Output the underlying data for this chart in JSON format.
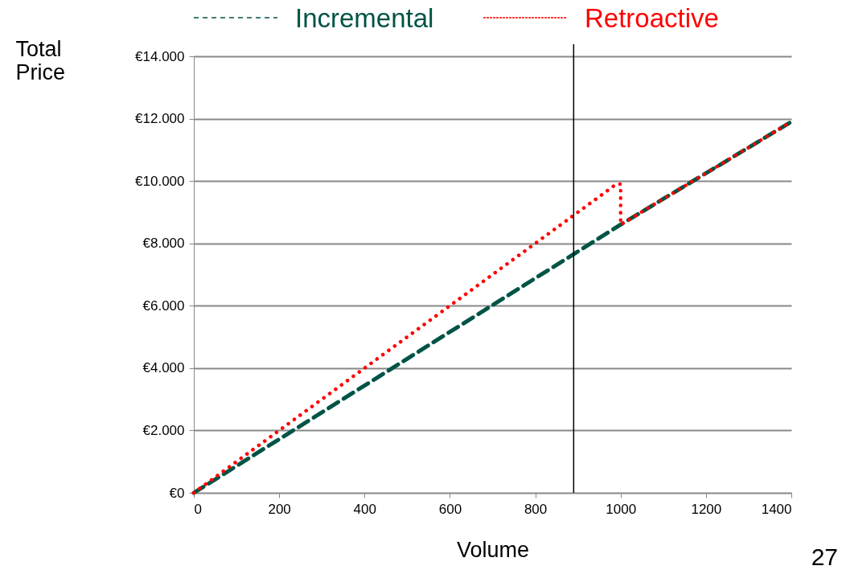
{
  "chart_data": {
    "type": "line",
    "xlabel": "Volume",
    "ylabel": "Total Price",
    "x": [
      0,
      1000,
      1400
    ],
    "series": [
      {
        "name": "Incremental",
        "color": "#005446",
        "line_style": "dashed",
        "values": [
          0,
          8600,
          11900
        ]
      },
      {
        "name": "Retroactive",
        "color": "#ff0000",
        "line_style": "dotted",
        "x": [
          0,
          990,
          1000,
          1000,
          1400
        ],
        "values": [
          0,
          9900,
          9900,
          8600,
          11900
        ]
      }
    ],
    "xlim": [
      0,
      1400
    ],
    "xticks": [
      0,
      200,
      400,
      600,
      800,
      1000,
      1200,
      1400
    ],
    "ylim": [
      0,
      14000
    ],
    "yticks": [
      {
        "value": 0,
        "label": "€0"
      },
      {
        "value": 2000,
        "label": "€2.000"
      },
      {
        "value": 4000,
        "label": "€4.000"
      },
      {
        "value": 6000,
        "label": "€6.000"
      },
      {
        "value": 8000,
        "label": "€8.000"
      },
      {
        "value": 10000,
        "label": "€10.000"
      },
      {
        "value": 12000,
        "label": "€12.000"
      },
      {
        "value": 14000,
        "label": "€14.000"
      }
    ],
    "ref_lines": [
      {
        "axis": "x",
        "value": 890,
        "color": "#000000"
      }
    ],
    "annotations": [
      "27"
    ],
    "grid": "y",
    "legend": "top",
    "marker": "none"
  }
}
